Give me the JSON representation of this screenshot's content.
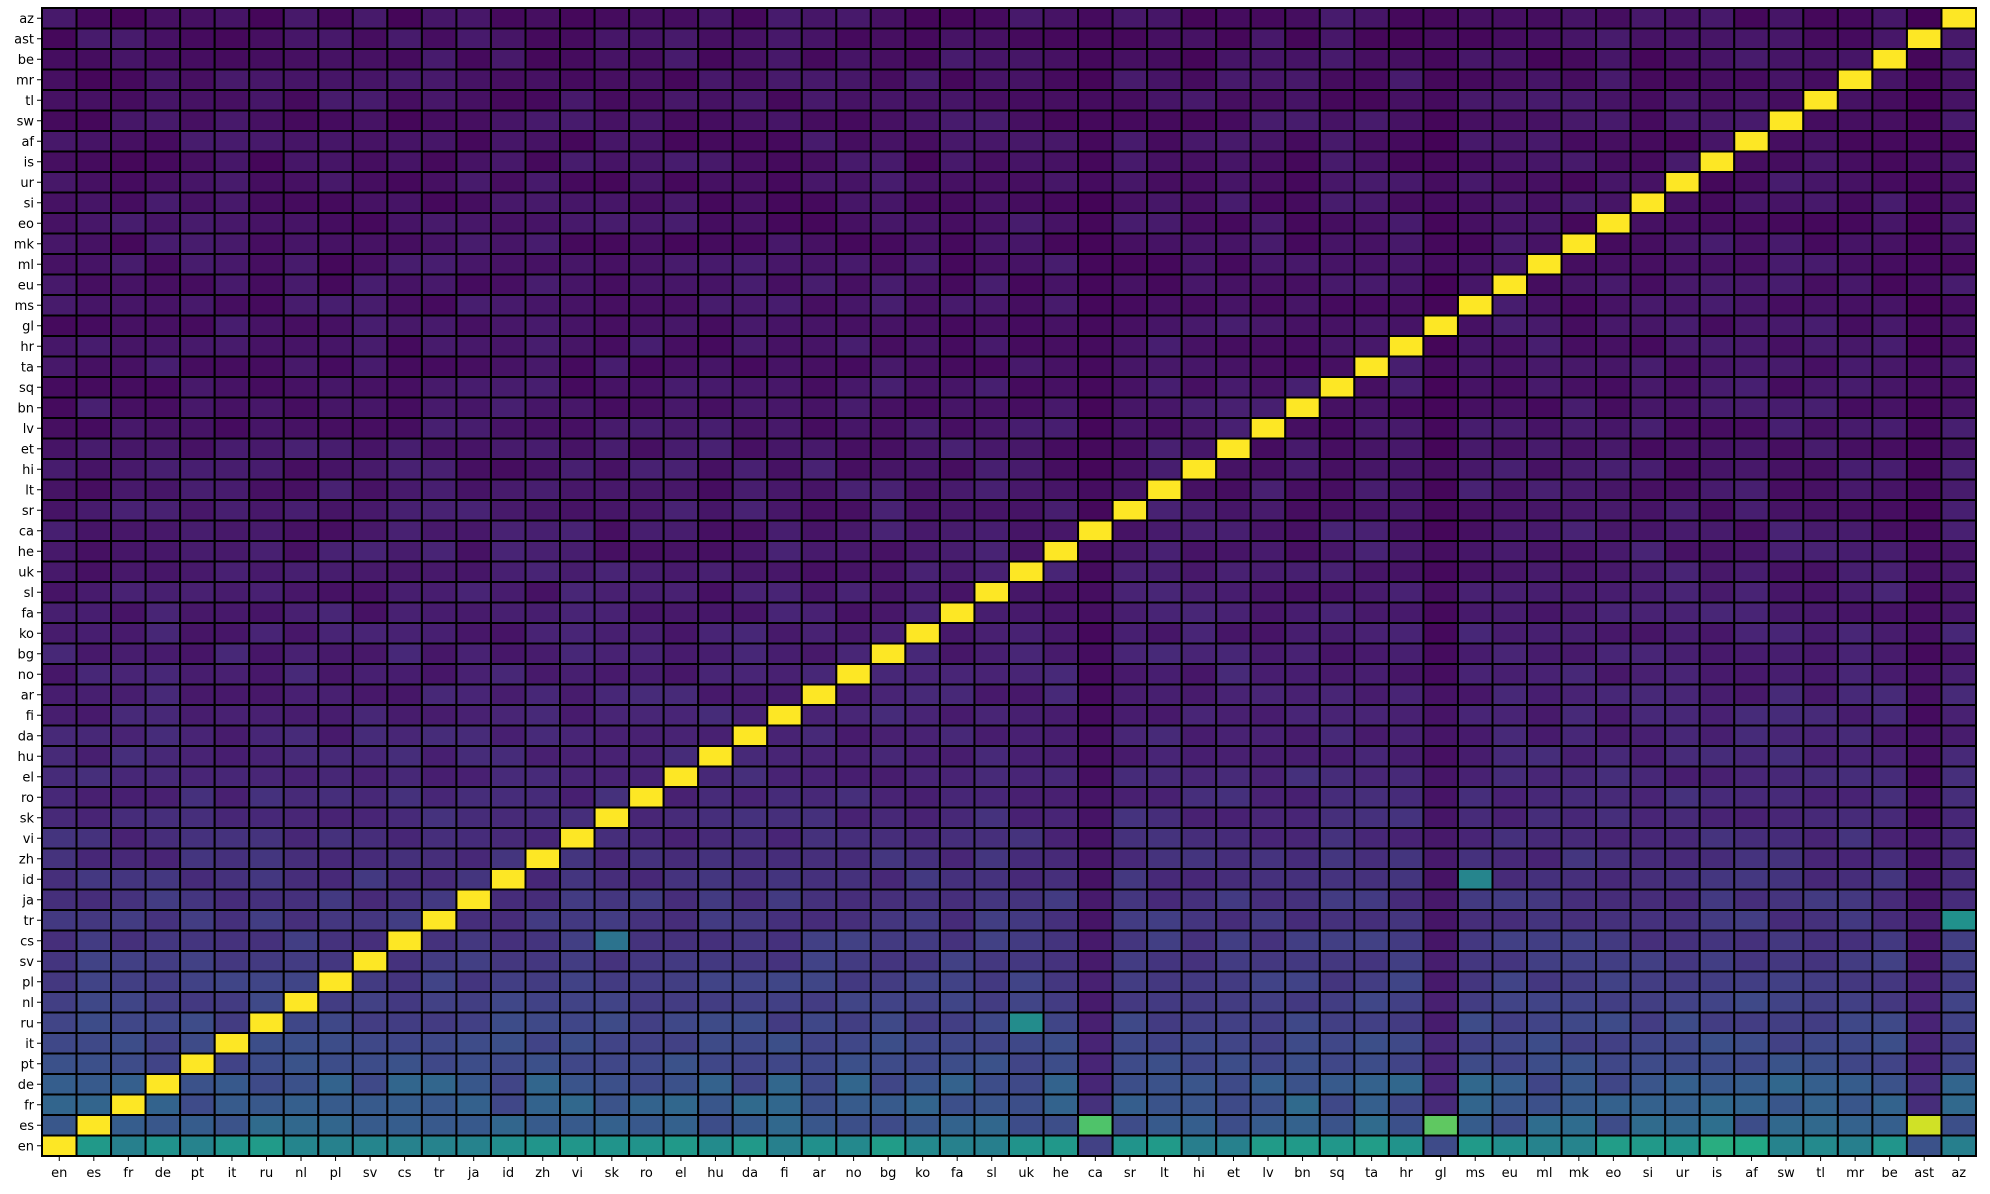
{
  "chart_data": {
    "type": "heatmap",
    "title": "",
    "xlabel": "",
    "ylabel": "",
    "colormap": "viridis",
    "grid": false,
    "value_range": [
      0,
      1
    ],
    "cell_edge_color": "#000000",
    "x_categories": [
      "en",
      "es",
      "fr",
      "de",
      "pt",
      "it",
      "ru",
      "nl",
      "pl",
      "sv",
      "cs",
      "tr",
      "ja",
      "id",
      "zh",
      "vi",
      "sk",
      "ro",
      "el",
      "hu",
      "da",
      "fi",
      "ar",
      "no",
      "bg",
      "ko",
      "fa",
      "sl",
      "uk",
      "he",
      "ca",
      "sr",
      "lt",
      "hi",
      "et",
      "lv",
      "bn",
      "sq",
      "ta",
      "hr",
      "gl",
      "ms",
      "eu",
      "ml",
      "mk",
      "eo",
      "si",
      "ur",
      "is",
      "af",
      "sw",
      "tl",
      "mr",
      "be",
      "ast",
      "az"
    ],
    "y_categories": [
      "en",
      "es",
      "fr",
      "de",
      "pt",
      "it",
      "ru",
      "nl",
      "pl",
      "sv",
      "cs",
      "tr",
      "ja",
      "id",
      "zh",
      "vi",
      "sk",
      "ro",
      "el",
      "hu",
      "da",
      "fi",
      "ar",
      "no",
      "bg",
      "ko",
      "fa",
      "sl",
      "uk",
      "he",
      "ca",
      "sr",
      "lt",
      "hi",
      "et",
      "lv",
      "bn",
      "sq",
      "ta",
      "hr",
      "gl",
      "ms",
      "eu",
      "ml",
      "mk",
      "eo",
      "si",
      "ur",
      "is",
      "af",
      "sw",
      "tl",
      "mr",
      "be",
      "ast",
      "az"
    ],
    "y_order": "bottom-to-top",
    "diagonal_value": 1.0,
    "notes_on_values": "Cell values are estimated from color intensity on a 0-1 viridis scale. Diagonal cells (same source/target language) are 1.0. Off-diagonal values decay with row index; the 'en' row and the 'es','fr','de' rows are highest.",
    "highlight_cells": [
      {
        "row": "es",
        "col": "ast",
        "value": 0.93
      },
      {
        "row": "es",
        "col": "gl",
        "value": 0.75
      },
      {
        "row": "es",
        "col": "ca",
        "value": 0.72
      },
      {
        "row": "tr",
        "col": "az",
        "value": 0.5
      },
      {
        "row": "ru",
        "col": "uk",
        "value": 0.48
      },
      {
        "row": "id",
        "col": "ms",
        "value": 0.45
      },
      {
        "row": "cs",
        "col": "sk",
        "value": 0.38
      },
      {
        "row": "en",
        "col": "is",
        "value": 0.62
      },
      {
        "row": "en",
        "col": "af",
        "value": 0.6
      },
      {
        "row": "en",
        "col": "eo",
        "value": 0.55
      }
    ]
  }
}
